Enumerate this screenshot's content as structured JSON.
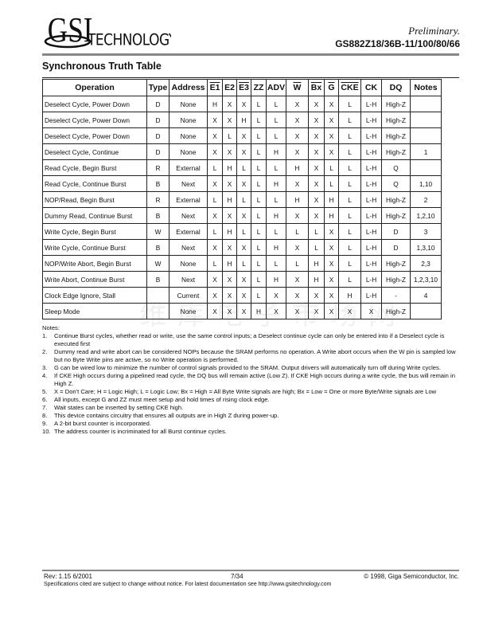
{
  "header": {
    "logo_text": "GSI TECHNOLOGY",
    "preliminary": "Preliminary.",
    "part_number": "GS882Z18/36B-11/100/80/66"
  },
  "title": "Synchronous Truth Table",
  "table": {
    "columns": [
      {
        "label": "Operation",
        "overbar": false
      },
      {
        "label": "Type",
        "overbar": false
      },
      {
        "label": "Address",
        "overbar": false
      },
      {
        "label": "E1",
        "overbar": true
      },
      {
        "label": "E2",
        "overbar": false
      },
      {
        "label": "E3",
        "overbar": true
      },
      {
        "label": "ZZ",
        "overbar": false
      },
      {
        "label": "ADV",
        "overbar": false
      },
      {
        "label": "W",
        "overbar": true
      },
      {
        "label": "Bx",
        "overbar": true
      },
      {
        "label": "G",
        "overbar": true
      },
      {
        "label": "CKE",
        "overbar": true
      },
      {
        "label": "CK",
        "overbar": false
      },
      {
        "label": "DQ",
        "overbar": false
      },
      {
        "label": "Notes",
        "overbar": false
      }
    ],
    "rows": [
      [
        "Deselect Cycle, Power Down",
        "D",
        "None",
        "H",
        "X",
        "X",
        "L",
        "L",
        "X",
        "X",
        "X",
        "L",
        "L-H",
        "High-Z",
        ""
      ],
      [
        "Deselect Cycle, Power Down",
        "D",
        "None",
        "X",
        "X",
        "H",
        "L",
        "L",
        "X",
        "X",
        "X",
        "L",
        "L-H",
        "High-Z",
        ""
      ],
      [
        "Deselect Cycle, Power Down",
        "D",
        "None",
        "X",
        "L",
        "X",
        "L",
        "L",
        "X",
        "X",
        "X",
        "L",
        "L-H",
        "High-Z",
        ""
      ],
      [
        "Deselect Cycle, Continue",
        "D",
        "None",
        "X",
        "X",
        "X",
        "L",
        "H",
        "X",
        "X",
        "X",
        "L",
        "L-H",
        "High-Z",
        "1"
      ],
      [
        "Read Cycle, Begin Burst",
        "R",
        "External",
        "L",
        "H",
        "L",
        "L",
        "L",
        "H",
        "X",
        "L",
        "L",
        "L-H",
        "Q",
        ""
      ],
      [
        "Read Cycle, Continue Burst",
        "B",
        "Next",
        "X",
        "X",
        "X",
        "L",
        "H",
        "X",
        "X",
        "L",
        "L",
        "L-H",
        "Q",
        "1,10"
      ],
      [
        "NOP/Read, Begin Burst",
        "R",
        "External",
        "L",
        "H",
        "L",
        "L",
        "L",
        "H",
        "X",
        "H",
        "L",
        "L-H",
        "High-Z",
        "2"
      ],
      [
        "Dummy Read, Continue Burst",
        "B",
        "Next",
        "X",
        "X",
        "X",
        "L",
        "H",
        "X",
        "X",
        "H",
        "L",
        "L-H",
        "High-Z",
        "1,2,10"
      ],
      [
        "Write Cycle, Begin Burst",
        "W",
        "External",
        "L",
        "H",
        "L",
        "L",
        "L",
        "L",
        "L",
        "X",
        "L",
        "L-H",
        "D",
        "3"
      ],
      [
        "Write Cycle, Continue Burst",
        "B",
        "Next",
        "X",
        "X",
        "X",
        "L",
        "H",
        "X",
        "L",
        "X",
        "L",
        "L-H",
        "D",
        "1,3,10"
      ],
      [
        "NOP/Write Abort, Begin Burst",
        "W",
        "None",
        "L",
        "H",
        "L",
        "L",
        "L",
        "L",
        "H",
        "X",
        "L",
        "L-H",
        "High-Z",
        "2,3"
      ],
      [
        "Write Abort, Continue Burst",
        "B",
        "Next",
        "X",
        "X",
        "X",
        "L",
        "H",
        "X",
        "H",
        "X",
        "L",
        "L-H",
        "High-Z",
        "1,2,3,10"
      ],
      [
        "Clock Edge Ignore, Stall",
        "",
        "Current",
        "X",
        "X",
        "X",
        "L",
        "X",
        "X",
        "X",
        "X",
        "H",
        "L-H",
        "-",
        "4"
      ],
      [
        "Sleep Mode",
        "",
        "None",
        "X",
        "X",
        "X",
        "H",
        "X",
        "X",
        "X",
        "X",
        "X",
        "X",
        "High-Z",
        ""
      ]
    ]
  },
  "notes": {
    "heading": "Notes:",
    "items": [
      {
        "n": "1.",
        "text": "Continue Burst cycles, whether read or write, use the same control inputs; a Deselect continue cycle can only be entered into if a Deselect cycle is executed first"
      },
      {
        "n": "2.",
        "text": "Dummy read and write abort can be considered NOPs because the SRAM performs no operation. A Write abort occurs when the W pin is sampled low but no Byte Write pins are active, so no Write operation is performed."
      },
      {
        "n": "3.",
        "text": "G can be wired low to minimize the number of control signals provided to the SRAM. Output drivers will automatically turn off during Write cycles."
      },
      {
        "n": "4.",
        "text": "If CKE High occurs during a pipelined read cycle, the DQ bus will remain active (Low Z). If CKE High occurs during a write cycle, the bus will remain in High Z."
      },
      {
        "n": "5.",
        "text": " X = Don't Care;  H = Logic High; L = Logic Low;  Bx = High = All Byte Write signals are high;  Bx = Low = One or more Byte/Write signals are Low"
      },
      {
        "n": "6.",
        "text": "All inputs, except G and ZZ must meet setup and hold times of rising clock edge."
      },
      {
        "n": "7.",
        "text": "Wait states can be inserted by setting CKE high."
      },
      {
        "n": "8.",
        "text": "This device contains circuitry that ensures all outputs are in High Z during power-up."
      },
      {
        "n": "9.",
        "text": "A 2-bit burst counter is incorporated."
      },
      {
        "n": "10.",
        "text": "The address counter is incriminated for all Burst continue cycles."
      }
    ]
  },
  "watermark": "维库电子市场网",
  "footer": {
    "rev": "Rev:  1.15  6/2001",
    "page": "7/34",
    "copyright": "© 1998, Giga Semiconductor, Inc.",
    "spec": "Specifications cited are subject to change without notice. For latest documentation see http://www.gsitechnology.com"
  }
}
